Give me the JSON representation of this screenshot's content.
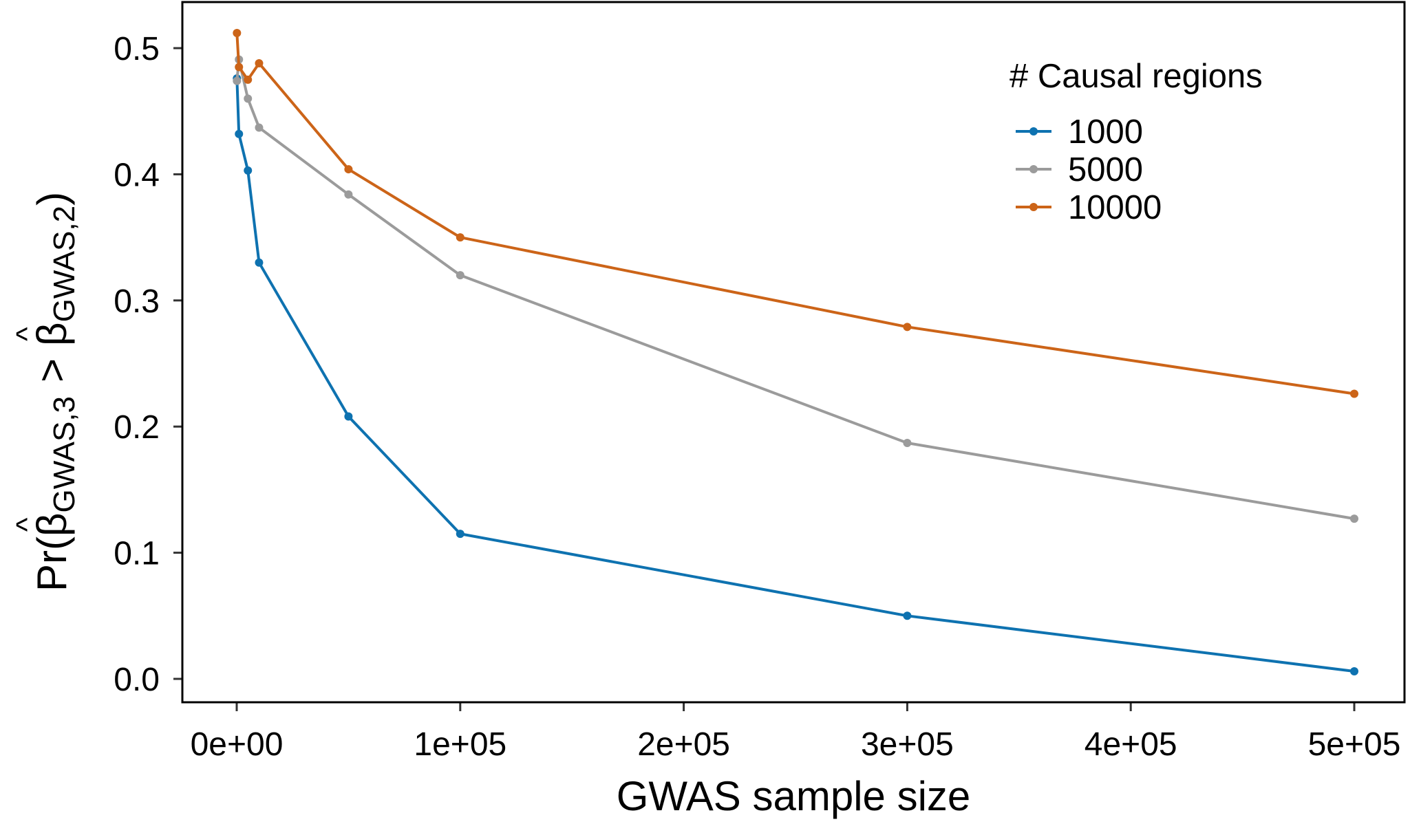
{
  "chart_data": {
    "type": "line",
    "xlabel": "GWAS sample size",
    "ylabel": {
      "prefix": "Pr(",
      "beta1_sub": "GWAS,3",
      "comparator": ">",
      "beta2_sub": "GWAS,2",
      "suffix": ")",
      "hat": "^",
      "beta": "β"
    },
    "xlim": [
      -24000,
      524000
    ],
    "ylim": [
      -0.018,
      0.537
    ],
    "x_ticks": [
      0,
      100000,
      200000,
      300000,
      400000,
      500000
    ],
    "x_tick_labels": [
      "0e+00",
      "1e+05",
      "2e+05",
      "3e+05",
      "4e+05",
      "5e+05"
    ],
    "y_ticks": [
      0.0,
      0.1,
      0.2,
      0.3,
      0.4,
      0.5
    ],
    "y_tick_labels": [
      "0.0",
      "0.1",
      "0.2",
      "0.3",
      "0.4",
      "0.5"
    ],
    "grid": false,
    "legend": {
      "title": "# Causal regions",
      "position": "top-right"
    },
    "series": [
      {
        "name": "1000",
        "color": "#0e72b0",
        "x": [
          100,
          1000,
          5000,
          10000,
          50000,
          100000,
          300000,
          500000
        ],
        "y": [
          0.476,
          0.432,
          0.403,
          0.33,
          0.208,
          0.115,
          0.05,
          0.006
        ]
      },
      {
        "name": "5000",
        "color": "#9b9b9b",
        "x": [
          100,
          1000,
          5000,
          10000,
          50000,
          100000,
          300000,
          500000
        ],
        "y": [
          0.474,
          0.491,
          0.46,
          0.437,
          0.384,
          0.32,
          0.187,
          0.127
        ]
      },
      {
        "name": "10000",
        "color": "#cc6418",
        "x": [
          100,
          1000,
          5000,
          10000,
          50000,
          100000,
          300000,
          500000
        ],
        "y": [
          0.512,
          0.485,
          0.475,
          0.488,
          0.404,
          0.35,
          0.279,
          0.226
        ]
      }
    ]
  }
}
